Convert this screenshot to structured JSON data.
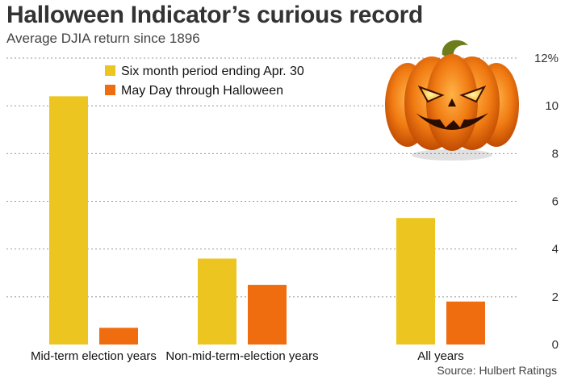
{
  "header": {
    "title": "Halloween Indicator’s curious record",
    "subtitle": "Average DJIA return since 1896"
  },
  "footer": {
    "source": "Source: Hulbert Ratings"
  },
  "colors": {
    "series1": "#ecc520",
    "series2": "#ef6c0f",
    "grid": "#999999"
  },
  "illustration": {
    "icon": "jack-o-lantern-icon"
  },
  "chart_data": {
    "type": "bar",
    "categories": [
      "Mid-term election years",
      "Non-mid-term-election years",
      "All years"
    ],
    "series": [
      {
        "name": "Six month period ending Apr. 30",
        "values": [
          10.4,
          3.6,
          5.3
        ]
      },
      {
        "name": "May Day through Halloween",
        "values": [
          0.7,
          2.5,
          1.8
        ]
      }
    ],
    "ylim": [
      0,
      12
    ],
    "yticks": [
      "0",
      "2",
      "4",
      "6",
      "8",
      "10",
      "12%"
    ],
    "grid": true,
    "legend": "top-left",
    "yaxis_position": "right"
  }
}
